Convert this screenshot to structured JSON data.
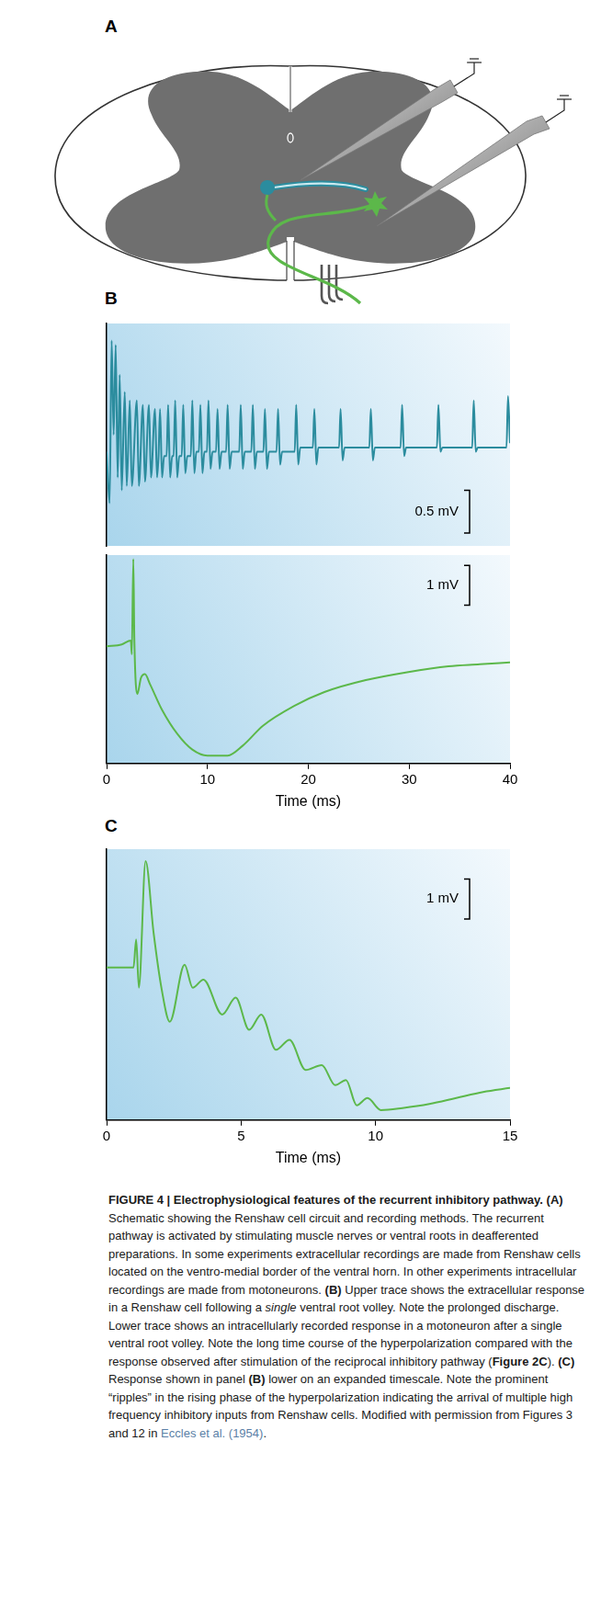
{
  "panel_labels": [
    "A",
    "B",
    "C"
  ],
  "chart_data": [
    {
      "type": "line",
      "color": "#2b8c9e",
      "grid": false,
      "tick_labels": false,
      "xlim": [
        0,
        40
      ],
      "ylim": [
        -1.1,
        1.5
      ],
      "scale_bar": {
        "value": 0.5,
        "label": "0.5 mV"
      },
      "x": [
        0,
        0.3,
        0.5,
        0.7,
        0.9,
        1.1,
        1.3,
        1.5,
        1.8,
        2.0,
        2.3,
        2.5,
        3.0,
        3.2,
        3.6,
        3.8,
        4.2,
        4.4,
        4.8,
        5.0,
        5.15,
        5.3,
        5.5,
        5.7,
        5.95,
        6.1,
        6.3,
        6.5,
        6.65,
        6.8,
        7.0,
        7.2,
        7.45,
        7.6,
        7.8,
        8.0,
        8.35,
        8.5,
        8.7,
        8.9,
        9.15,
        9.3,
        9.5,
        9.7,
        9.95,
        10.1,
        10.3,
        10.5,
        10.85,
        11.0,
        11.2,
        11.4,
        11.85,
        12.0,
        12.2,
        12.4,
        13.15,
        13.3,
        13.5,
        13.7,
        14.35,
        14.5,
        14.7,
        14.9,
        15.55,
        15.7,
        15.9,
        16.1,
        16.85,
        17.0,
        17.2,
        17.4,
        18.65,
        18.8,
        19.0,
        19.2,
        20.45,
        20.6,
        20.8,
        21.0,
        23.05,
        23.2,
        23.4,
        23.6,
        26.05,
        26.2,
        26.4,
        26.6,
        29.15,
        29.3,
        29.5,
        29.7,
        32.75,
        32.9,
        33.1,
        33.3,
        36.25,
        36.4,
        36.6,
        36.8,
        39.65,
        39.8,
        40
      ],
      "values": [
        0,
        -0.6,
        1.3,
        0.2,
        1.25,
        -0.3,
        0.9,
        -0.45,
        0.7,
        -0.4,
        0.6,
        -0.4,
        0.6,
        -0.4,
        0.55,
        -0.35,
        0.55,
        -0.3,
        0.5,
        -0.3,
        -0.05,
        0.5,
        -0.3,
        -0.05,
        -0.05,
        0.55,
        -0.3,
        -0.05,
        -0.05,
        0.6,
        -0.3,
        -0.05,
        -0.05,
        0.55,
        -0.25,
        -0.05,
        -0.05,
        0.6,
        -0.25,
        0,
        0,
        0.55,
        -0.25,
        0,
        0,
        0.6,
        -0.2,
        0,
        0,
        0.5,
        -0.2,
        0,
        0,
        0.55,
        -0.2,
        0,
        0,
        0.55,
        -0.2,
        0,
        0,
        0.55,
        -0.2,
        0,
        0,
        0.5,
        -0.2,
        0,
        0,
        0.5,
        -0.15,
        0,
        0,
        0.55,
        -0.15,
        0.05,
        0.05,
        0.5,
        -0.15,
        0.05,
        0.05,
        0.5,
        -0.1,
        0.05,
        0.05,
        0.5,
        -0.1,
        0.05,
        0.05,
        0.55,
        -0.05,
        0.05,
        0.05,
        0.55,
        0,
        0.05,
        0.05,
        0.6,
        0,
        0.05,
        0.05,
        0.65,
        0.1
      ]
    },
    {
      "type": "line",
      "color": "#5cb84a",
      "grid": false,
      "tick_labels": "x",
      "x_label": "Time (ms)",
      "xlim": [
        0,
        40
      ],
      "xticks": [
        0,
        10,
        20,
        30,
        40
      ],
      "ylim": [
        -2.95,
        2.3
      ],
      "scale_bar": {
        "value": 1,
        "label": "1 mV"
      },
      "x": [
        0,
        1.5,
        2.4,
        2.5,
        2.65,
        2.75,
        3.05,
        3.4,
        3.8,
        4.3,
        5.5,
        7,
        8.5,
        10,
        12,
        13.5,
        15.5,
        18.6,
        21.6,
        25.7,
        29.8,
        33.9,
        37,
        40
      ],
      "values": [
        0,
        0.05,
        0.15,
        -0.2,
        2.2,
        0.2,
        -1.2,
        -0.8,
        -0.7,
        -0.95,
        -1.6,
        -2.2,
        -2.6,
        -2.75,
        -2.75,
        -2.5,
        -2.0,
        -1.5,
        -1.15,
        -0.85,
        -0.65,
        -0.5,
        -0.45,
        -0.4
      ]
    },
    {
      "type": "line",
      "color": "#5cb84a",
      "grid": false,
      "tick_labels": "x",
      "x_label": "Time (ms)",
      "xlim": [
        0,
        15
      ],
      "xticks": [
        0,
        5,
        10,
        15
      ],
      "ylim": [
        -3.75,
        3.0
      ],
      "scale_bar": {
        "value": 1,
        "label": "1 mV"
      },
      "x": [
        0,
        1.0,
        1.1,
        1.2,
        1.45,
        1.75,
        2.05,
        2.35,
        2.9,
        3.2,
        3.6,
        4.3,
        4.8,
        5.3,
        5.75,
        6.3,
        6.8,
        7.4,
        8.0,
        8.5,
        8.9,
        9.3,
        9.7,
        10.2,
        11,
        12,
        13,
        14,
        15
      ],
      "values": [
        0.05,
        0.05,
        0.75,
        -0.45,
        2.7,
        0.9,
        -0.5,
        -1.3,
        0.12,
        -0.45,
        -0.25,
        -1.12,
        -0.7,
        -1.5,
        -1.12,
        -2.0,
        -1.75,
        -2.5,
        -2.38,
        -2.88,
        -2.75,
        -3.38,
        -3.2,
        -3.5,
        -3.45,
        -3.35,
        -3.2,
        -3.05,
        -2.95
      ]
    }
  ],
  "caption": {
    "runs": [
      {
        "text": "FIGURE 4 | Electrophysiological features of the recurrent inhibitory pathway.",
        "style": "bold"
      },
      {
        "text": " (A)",
        "style": "bold"
      },
      {
        "text": " Schematic showing the Renshaw cell circuit and recording methods. The recurrent pathway is activated by stimulating muscle nerves or ventral roots in deafferented preparations. In some experiments extracellular recordings are made from Renshaw cells located on the ventro-medial border of the ventral horn. In other experiments intracellular recordings are made from motoneurons.",
        "style": "plain"
      },
      {
        "text": " (B)",
        "style": "bold"
      },
      {
        "text": " Upper trace shows the extracellular response in a Renshaw cell following a ",
        "style": "plain"
      },
      {
        "text": "single",
        "style": "italic"
      },
      {
        "text": " ventral root volley. Note the prolonged discharge. Lower trace shows an intracellularly recorded response in a motoneuron after a single ventral root volley. Note the long time course of the hyperpolarization compared with the response observed after stimulation of the reciprocal inhibitory pathway (",
        "style": "plain"
      },
      {
        "text": "Figure 2C",
        "style": "bold"
      },
      {
        "text": ").",
        "style": "plain"
      },
      {
        "text": " (C)",
        "style": "bold"
      },
      {
        "text": " Response shown in panel ",
        "style": "plain"
      },
      {
        "text": "(B)",
        "style": "bold"
      },
      {
        "text": " lower on an expanded timescale. Note the prominent “ripples” in the rising phase of the hyperpolarization indicating the arrival of multiple high frequency inhibitory inputs from Renshaw cells. Modified with permission from Figures 3 and 12 in ",
        "style": "plain"
      },
      {
        "text": "Eccles et al. (1954)",
        "style": "link"
      },
      {
        "text": ".",
        "style": "plain"
      }
    ]
  }
}
